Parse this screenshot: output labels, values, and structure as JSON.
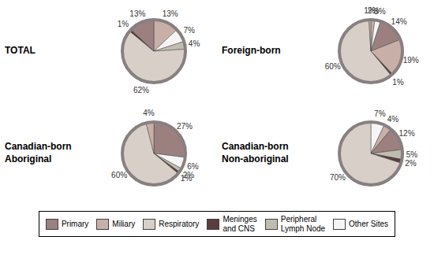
{
  "chart_data": [
    {
      "type": "pie",
      "title": "TOTAL",
      "values": [
        13,
        7,
        4,
        62,
        1,
        13
      ],
      "value_labels": [
        "13%",
        "7%",
        "4%",
        "62%",
        "1%",
        "13%"
      ],
      "colors": [
        "#c8b0a8",
        "#f5f5f5",
        "#c0bdb0",
        "#d8d0c8",
        "#5a3c3c",
        "#9c8080"
      ],
      "data_labels": true
    },
    {
      "type": "pie",
      "title": "Foreign-born",
      "values": [
        2,
        3,
        14,
        19,
        1,
        60,
        1
      ],
      "value_labels": [
        "2%",
        "3%",
        "14%",
        "19%",
        "1%",
        "60%",
        "1%"
      ],
      "colors": [
        "#c8b0a8",
        "#f5f5f5",
        "#9c8080",
        "#c8b0a8",
        "#5a3c3c",
        "#d8d0c8",
        "#c0bdb0"
      ],
      "data_labels": true
    },
    {
      "type": "pie",
      "title": "Canadian-born\nAboriginal",
      "values": [
        27,
        6,
        2,
        1,
        60,
        4
      ],
      "value_labels": [
        "27%",
        "6%",
        "2%",
        "1%",
        "60%",
        "4%"
      ],
      "colors": [
        "#9c8080",
        "#f5f5f5",
        "#c0bdb0",
        "#5a3c3c",
        "#d8d0c8",
        "#c8b0a8"
      ],
      "data_labels": true
    },
    {
      "type": "pie",
      "title": "Canadian-born\nNon-aboriginal",
      "values": [
        7,
        4,
        12,
        5,
        2,
        70
      ],
      "value_labels": [
        "7%",
        "4%",
        "12%",
        "5%",
        "2%",
        "70%"
      ],
      "colors": [
        "#f5f5f5",
        "#c8b0a8",
        "#9c8080",
        "#c0bdb0",
        "#5a3c3c",
        "#d8d0c8"
      ],
      "data_labels": true
    }
  ],
  "series": [
    {
      "name": "Primary",
      "color": "#9c8080"
    },
    {
      "name": "Miliary",
      "color": "#c8b0a8"
    },
    {
      "name": "Respiratory",
      "color": "#d8d0c8"
    },
    {
      "name": "Meninges\nand CNS",
      "color": "#5a3c3c"
    },
    {
      "name": "Peripheral\nLymph Node",
      "color": "#c0bdb0"
    },
    {
      "name": "Other Sites",
      "color": "#f5f5f5"
    }
  ]
}
